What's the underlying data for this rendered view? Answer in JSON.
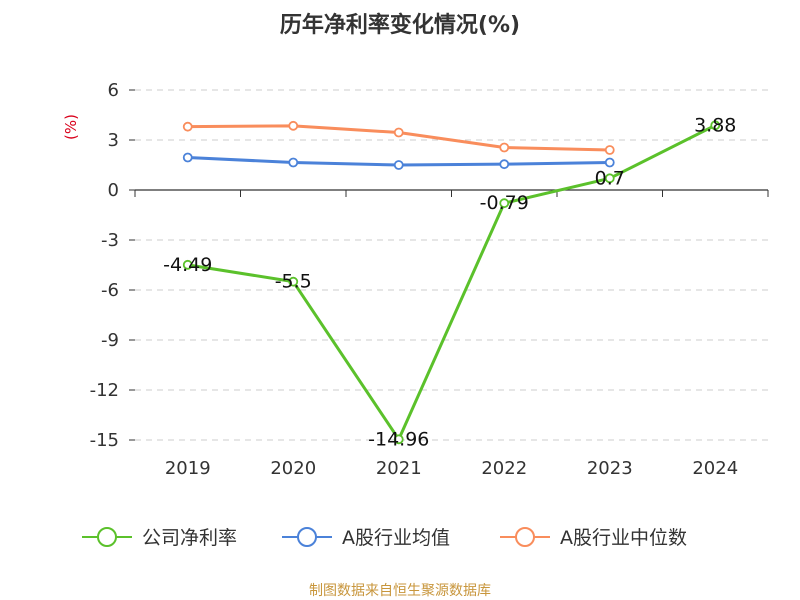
{
  "colors": {
    "company": "#5bc12b",
    "industry_avg": "#4b82d9",
    "industry_median": "#f98d5c",
    "unit": "#d9001b",
    "source": "#c8963c",
    "grid": "#cccccc"
  },
  "chart_data": {
    "type": "line",
    "title": "历年净利率变化情况(%)",
    "unit_label": "(%)",
    "categories": [
      "2019",
      "2020",
      "2021",
      "2022",
      "2023",
      "2024"
    ],
    "ylim": [
      -15,
      6
    ],
    "yticks": [
      6,
      3,
      0,
      -3,
      -6,
      -9,
      -12,
      -15
    ],
    "grid": "horizontal-dashed",
    "legend_position": "bottom",
    "series": [
      {
        "name": "公司净利率",
        "color_key": "company",
        "values": [
          -4.49,
          -5.5,
          -14.96,
          -0.79,
          0.7,
          3.88
        ],
        "labels": [
          "-4.49",
          "-5.5",
          "-14.96",
          "-0.79",
          "0.7",
          "3.88"
        ]
      },
      {
        "name": "A股行业均值",
        "color_key": "industry_avg",
        "values": [
          1.95,
          1.65,
          1.5,
          1.55,
          1.65,
          null
        ]
      },
      {
        "name": "A股行业中位数",
        "color_key": "industry_median",
        "values": [
          3.8,
          3.85,
          3.45,
          2.55,
          2.4,
          null
        ]
      }
    ]
  },
  "footer": {
    "source": "制图数据来自恒生聚源数据库"
  }
}
